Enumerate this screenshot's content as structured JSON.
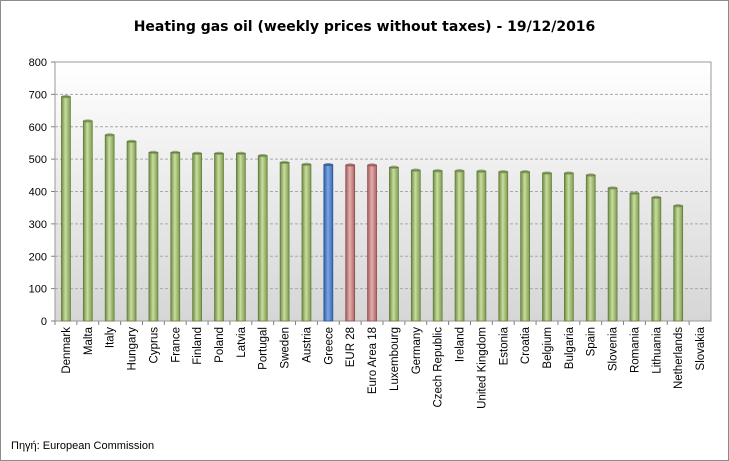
{
  "chart_data": {
    "type": "bar",
    "title": "Heating gas oil (weekly prices without taxes) - 19/12/2016",
    "xlabel": "",
    "ylabel": "",
    "ylim": [
      0,
      800
    ],
    "yticks": [
      "0",
      "100",
      "200",
      "300",
      "400",
      "500",
      "600",
      "700",
      "800"
    ],
    "grid": true,
    "legend": "none",
    "categories": [
      "Denmark",
      "Malta",
      "Italy",
      "Hungary",
      "Cyprus",
      "France",
      "Finland",
      "Poland",
      "Latvia",
      "Portugal",
      "Sweden",
      "Austria",
      "Greece",
      "EUR 28",
      "Euro Area 18",
      "Luxembourg",
      "Germany",
      "Czech Republic",
      "Ireland",
      "United Kingdom",
      "Estonia",
      "Croatia",
      "Belgium",
      "Bulgaria",
      "Spain",
      "Slovenia",
      "Romania",
      "Lithuania",
      "Netherlands",
      "Slovakia"
    ],
    "values": [
      693,
      618,
      575,
      555,
      521,
      521,
      518,
      518,
      518,
      511,
      490,
      484,
      483,
      482,
      482,
      475,
      466,
      464,
      464,
      463,
      461,
      461,
      457,
      457,
      451,
      411,
      395,
      382,
      356,
      null
    ],
    "colors": {
      "default": "#a6c178",
      "highlight": "#4f81c7",
      "aggregate": "#c98584"
    },
    "highlight_categories": [
      "Greece"
    ],
    "aggregate_categories": [
      "EUR 28",
      "Euro Area 18"
    ]
  },
  "source": "Πηγή: European Commission"
}
